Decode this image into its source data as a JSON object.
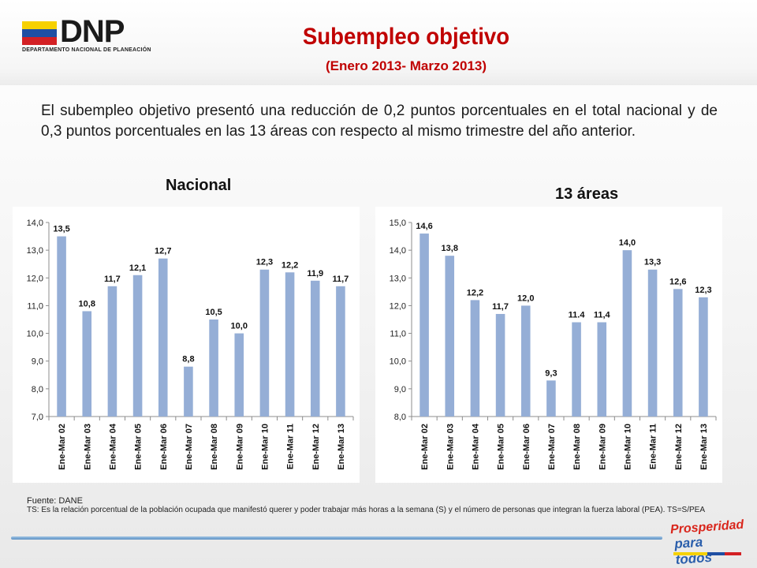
{
  "header": {
    "logo_text": "DNP",
    "logo_subtext": "DEPARTAMENTO NACIONAL DE PLANEACIÓN",
    "title": "Subempleo objetivo",
    "subtitle": "(Enero 2013- Marzo 2013)"
  },
  "intro": {
    "text": "El subempleo objetivo presentó una reducción de 0,2 puntos porcentuales en el total nacional y de 0,3 puntos porcentuales en las 13 áreas con respecto al mismo trimestre del año anterior."
  },
  "colors": {
    "bar": "#95aed6",
    "title": "#c00000",
    "flag_yellow": "#f6d100",
    "flag_blue": "#1f4fa3",
    "flag_red": "#d32024"
  },
  "chart_data": [
    {
      "type": "bar",
      "title": "Nacional",
      "categories": [
        "Ene-Mar 02",
        "Ene-Mar 03",
        "Ene-Mar 04",
        "Ene-Mar 05",
        "Ene-Mar 06",
        "Ene-Mar 07",
        "Ene-Mar 08",
        "Ene-Mar 09",
        "Ene-Mar 10",
        "Ene-Mar 11",
        "Ene-Mar 12",
        "Ene-Mar 13"
      ],
      "values": [
        13.5,
        10.8,
        11.7,
        12.1,
        12.7,
        8.8,
        10.5,
        10.0,
        12.3,
        12.2,
        11.9,
        11.7
      ],
      "value_labels": [
        "13,5",
        "10,8",
        "11,7",
        "12,1",
        "12,7",
        "8,8",
        "10,5",
        "10,0",
        "12,3",
        "12,2",
        "11,9",
        "11,7"
      ],
      "ylim": [
        7.0,
        14.0
      ],
      "yticks": [
        "7,0",
        "8,0",
        "9,0",
        "10,0",
        "11,0",
        "12,0",
        "13,0",
        "14,0"
      ],
      "grid": false,
      "legend": "none"
    },
    {
      "type": "bar",
      "title": "13 áreas",
      "categories": [
        "Ene-Mar 02",
        "Ene-Mar 03",
        "Ene-Mar 04",
        "Ene-Mar 05",
        "Ene-Mar 06",
        "Ene-Mar 07",
        "Ene-Mar 08",
        "Ene-Mar 09",
        "Ene-Mar 10",
        "Ene-Mar 11",
        "Ene-Mar 12",
        "Ene-Mar 13"
      ],
      "values": [
        14.6,
        13.8,
        12.2,
        11.7,
        12.0,
        9.3,
        11.4,
        11.4,
        14.0,
        13.3,
        12.6,
        12.3
      ],
      "value_labels": [
        "14,6",
        "13,8",
        "12,2",
        "11,7",
        "12,0",
        "9,3",
        "11.4",
        "11,4",
        "14,0",
        "13,3",
        "12,6",
        "12,3"
      ],
      "ylim": [
        8.0,
        15.0
      ],
      "yticks": [
        "8,0",
        "9,0",
        "10,0",
        "11,0",
        "12,0",
        "13,0",
        "14,0",
        "15,0"
      ],
      "grid": false,
      "legend": "none"
    }
  ],
  "footer": {
    "source": "Fuente: DANE",
    "note": "TS:  Es la relación porcentual de la población ocupada que manifestó querer y poder trabajar más horas a la semana (S) y el número de personas que integran la fuerza laboral (PEA). TS=S/PEA",
    "brand_line1": "Prosperidad",
    "brand_line2": "para todos"
  }
}
